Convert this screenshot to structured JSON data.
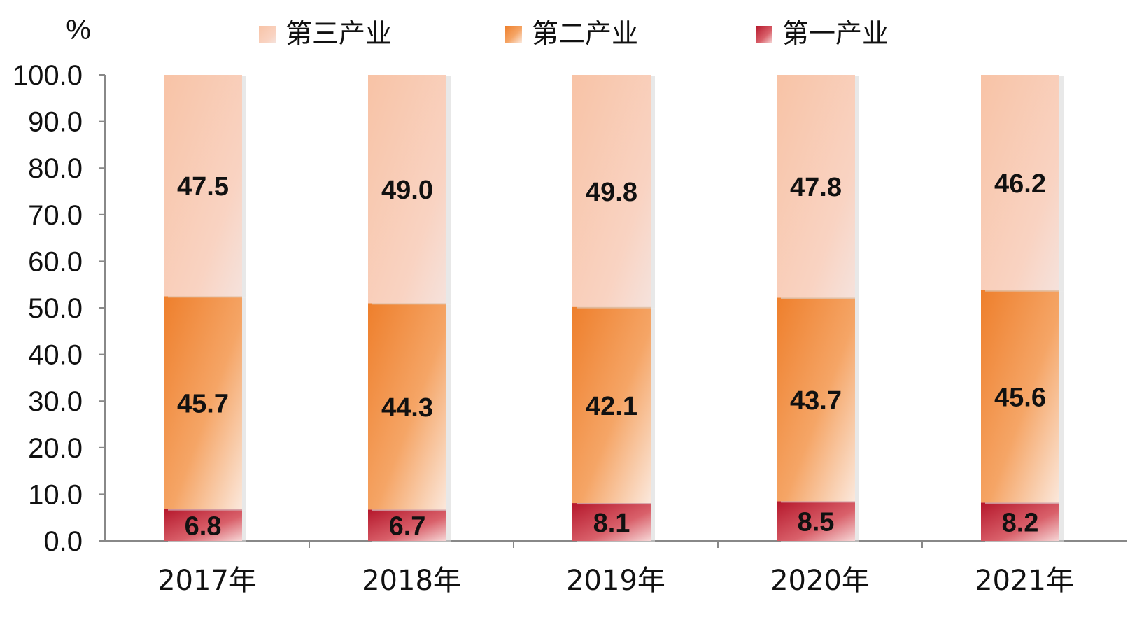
{
  "chart_data": {
    "type": "bar",
    "stacked": true,
    "unit_label": "%",
    "categories": [
      "2017年",
      "2018年",
      "2019年",
      "2020年",
      "2021年"
    ],
    "series": [
      {
        "name": "第一产业",
        "values": [
          6.8,
          6.7,
          8.1,
          8.5,
          8.2
        ],
        "labels": [
          "6.8",
          "6.7",
          "8.1",
          "8.5",
          "8.2"
        ],
        "color": "#c0392b"
      },
      {
        "name": "第二产业",
        "values": [
          45.7,
          44.3,
          42.1,
          43.7,
          45.6
        ],
        "labels": [
          "45.7",
          "44.3",
          "42.1",
          "43.7",
          "45.6"
        ],
        "color": "#f0883a"
      },
      {
        "name": "第三产业",
        "values": [
          47.5,
          49.0,
          49.8,
          47.8,
          46.2
        ],
        "labels": [
          "47.5",
          "49.0",
          "49.8",
          "47.8",
          "46.2"
        ],
        "color": "#f8c9b3"
      }
    ],
    "legend_order": [
      "第三产业",
      "第二产业",
      "第一产业"
    ],
    "ylim": [
      0,
      100
    ],
    "yticks": [
      "0.0",
      "10.0",
      "20.0",
      "30.0",
      "40.0",
      "50.0",
      "60.0",
      "70.0",
      "80.0",
      "90.0",
      "100.0"
    ],
    "legend_position": "top",
    "grid": false
  }
}
